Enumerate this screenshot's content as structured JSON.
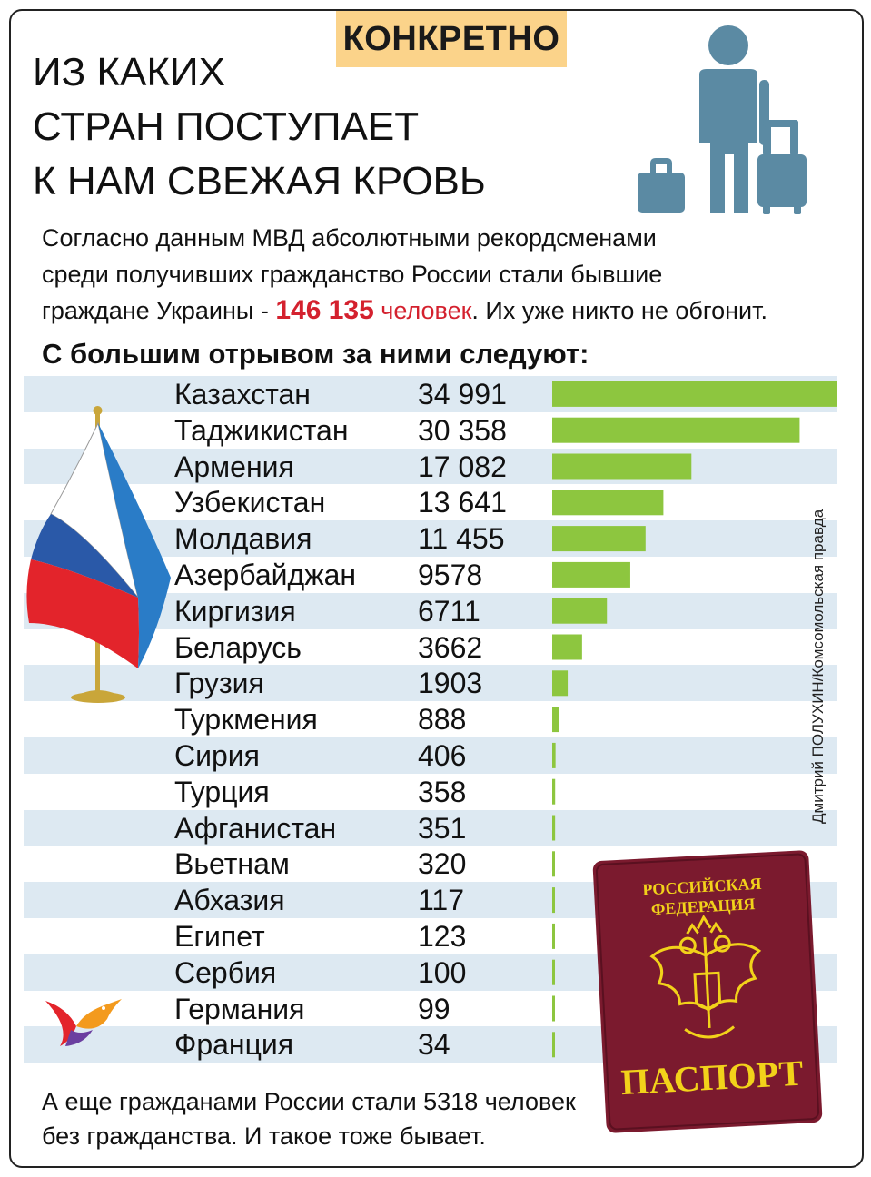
{
  "tag": "КОНКРЕТНО",
  "title_lines": [
    "ИЗ КАКИХ",
    "СТРАН ПОСТУПАЕТ",
    "К НАМ СВЕЖАЯ КРОВЬ"
  ],
  "intro": {
    "line1": "Согласно данным МВД абсолютными рекордсменами",
    "line2": "среди получивших гражданство России стали бывшие",
    "line3_pre": "граждане Украины - ",
    "ukraine_value": "146 135",
    "ukraine_unit": " человек",
    "line3_post": ". Их уже никто не обгонит."
  },
  "subhead": "С большим отрывом за ними следуют:",
  "credit": "Дмитрий ПОЛУХИН/Комсомольская правда",
  "passport": {
    "top": "РОССИЙСКАЯ",
    "top2": "ФЕДЕРАЦИЯ",
    "bottom": "ПАСПОРТ"
  },
  "footer": {
    "line1": "А еще гражданами России стали 5318 человек",
    "line2": "без гражданства. И такое тоже бывает."
  },
  "colors": {
    "bar": "#8dc63f",
    "row_alt": "#dde9f2",
    "accent_red": "#d4212e",
    "tag_bg": "#fbd38a",
    "icon": "#5b8aa3",
    "passport": "#7b1a2e",
    "passport_text": "#f2d21a"
  },
  "chart_data": {
    "type": "bar",
    "orientation": "horizontal",
    "categories": [
      "Казахстан",
      "Таджикистан",
      "Армения",
      "Узбекистан",
      "Молдавия",
      "Азербайджан",
      "Киргизия",
      "Беларусь",
      "Грузия",
      "Туркмения",
      "Сирия",
      "Турция",
      "Афганистан",
      "Вьетнам",
      "Абхазия",
      "Египет",
      "Сербия",
      "Германия",
      "Франция"
    ],
    "values": [
      34991,
      30358,
      17082,
      13641,
      11455,
      9578,
      6711,
      3662,
      1903,
      888,
      406,
      358,
      351,
      320,
      117,
      123,
      100,
      99,
      34
    ],
    "value_labels": [
      "34 991",
      "30 358",
      "17 082",
      "13 641",
      "11 455",
      "9578",
      "6711",
      "3662",
      "1903",
      "888",
      "406",
      "358",
      "351",
      "320",
      "117",
      "123",
      "100",
      "99",
      "34"
    ],
    "xlim": [
      0,
      34991
    ]
  }
}
